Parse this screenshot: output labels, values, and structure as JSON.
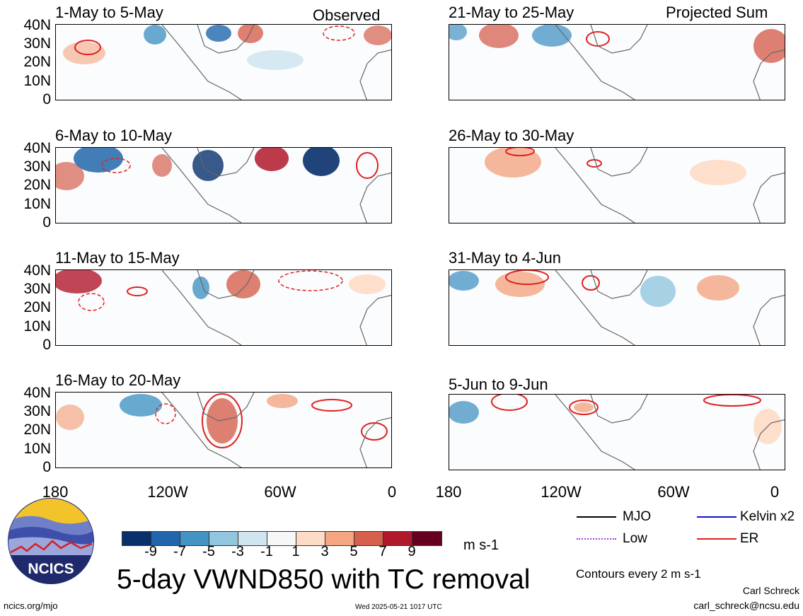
{
  "panels": {
    "observed": [
      {
        "title": "1-May to 5-May",
        "label": "Observed"
      },
      {
        "title": "6-May to 10-May",
        "label": ""
      },
      {
        "title": "11-May to 15-May",
        "label": ""
      },
      {
        "title": "16-May to 20-May",
        "label": ""
      }
    ],
    "projected": [
      {
        "title": "21-May to 25-May",
        "label": "Projected Sum"
      },
      {
        "title": "26-May to 30-May",
        "label": ""
      },
      {
        "title": "31-May to 4-Jun",
        "label": ""
      },
      {
        "title": "5-Jun to 9-Jun",
        "label": ""
      }
    ]
  },
  "axes": {
    "lat_ticks": [
      "40N",
      "30N",
      "20N",
      "10N",
      "0"
    ],
    "lon_ticks": [
      "180",
      "120W",
      "60W",
      "0"
    ]
  },
  "colorbar": {
    "labels": [
      "-9",
      "-7",
      "-5",
      "-3",
      "-1",
      "1",
      "3",
      "5",
      "7",
      "9"
    ],
    "colors": [
      "#08306b",
      "#2166ac",
      "#4393c3",
      "#92c5de",
      "#d1e5f0",
      "#f7f7f7",
      "#fddbc7",
      "#f4a582",
      "#d6604d",
      "#b2182b",
      "#67001f"
    ],
    "units": "m s-1"
  },
  "title": "5-day VWND850 with TC removal",
  "legend": {
    "items": [
      {
        "label": "MJO",
        "color": "#000000",
        "style": "solid"
      },
      {
        "label": "Kelvin x2",
        "color": "#1010d0",
        "style": "solid"
      },
      {
        "label": "Low",
        "color": "#a040e0",
        "style": "dotted"
      },
      {
        "label": "ER",
        "color": "#e02020",
        "style": "solid"
      }
    ],
    "note": "Contours every 2 m s-1"
  },
  "logo_text": "NCICS",
  "footer": {
    "url": "ncics.org/mjo",
    "timestamp": "Wed 2025-05-21 1017 UTC",
    "author": "Carl Schreck",
    "email": "carl_schreck@ncsu.edu"
  }
}
